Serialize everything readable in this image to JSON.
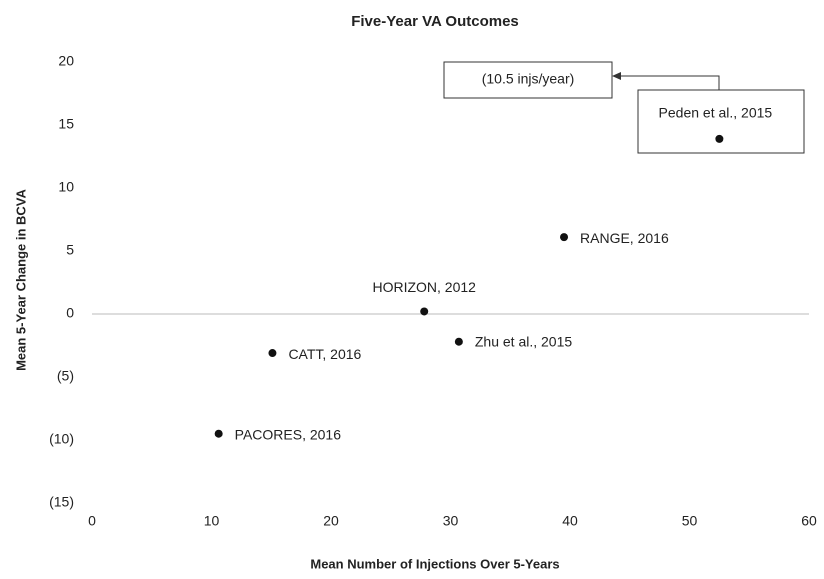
{
  "chart_data": {
    "type": "scatter",
    "title": "Five-Year VA Outcomes",
    "x_label": "Mean Number of Injections Over 5-Years",
    "y_label": "Mean 5-Year Change in BCVA",
    "x": [
      52.5,
      39.5,
      27.8,
      30.7,
      15.1,
      10.6
    ],
    "values": [
      13.9,
      6.1,
      0.2,
      -2.2,
      -3.1,
      -9.5
    ],
    "labels": [
      "Peden et al., 2015",
      "RANGE, 2016",
      "HORIZON, 2012",
      "Zhu et al., 2015",
      "CATT, 2016",
      "PACORES, 2016"
    ],
    "annotation": "(10.5 injs/year)",
    "color": "#111111",
    "xlim": [
      0,
      60
    ],
    "xticks": [
      0,
      10,
      20,
      30,
      40,
      50,
      60
    ],
    "ylim": [
      -15,
      20
    ],
    "yticks": [
      {
        "value": -15,
        "label": "(15)"
      },
      {
        "value": -10,
        "label": "(10)"
      },
      {
        "value": -5,
        "label": "(5)"
      },
      0,
      5,
      10,
      15,
      20
    ],
    "grid": false
  }
}
